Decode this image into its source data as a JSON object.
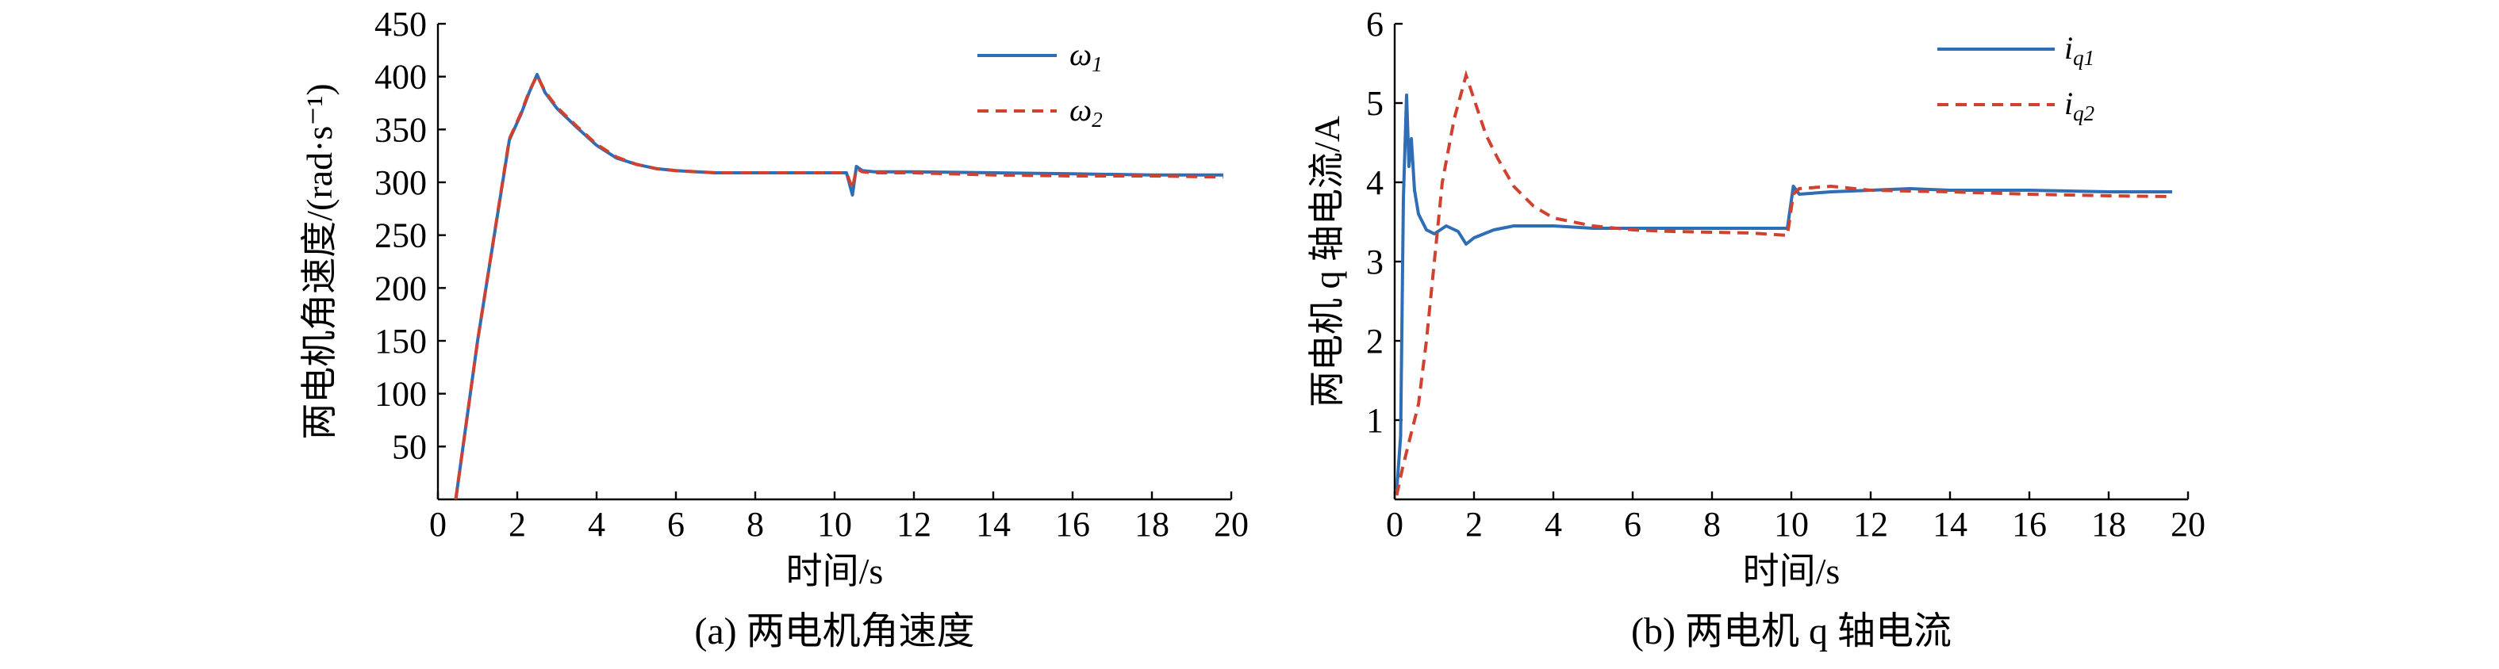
{
  "colors": {
    "series_solid": "#2f6db5",
    "series_dash": "#d0412f",
    "axis": "#000000"
  },
  "chart_data": [
    {
      "type": "line",
      "caption": "(a) 两电机角速度",
      "xlabel": "时间/s",
      "ylabel": "两电机角速度/(rad·s⁻¹)",
      "xlim": [
        0,
        20
      ],
      "ylim": [
        0,
        450
      ],
      "xticks": [
        0,
        2,
        4,
        6,
        8,
        10,
        12,
        14,
        16,
        18,
        20
      ],
      "yticks": [
        50,
        100,
        150,
        200,
        250,
        300,
        350,
        400,
        450
      ],
      "legend_position": "top-right",
      "series": [
        {
          "name": "ω1",
          "legend_base": "ω",
          "legend_sub": "1",
          "style": "solid",
          "x": [
            0.45,
            1.0,
            1.8,
            2.1,
            2.3,
            2.5,
            2.7,
            3.0,
            3.5,
            4.0,
            4.5,
            5.0,
            5.5,
            6.0,
            7.0,
            8.0,
            9.0,
            10.0,
            10.3,
            10.45,
            10.55,
            10.7,
            11.0,
            12.0,
            14.0,
            16.0,
            18.0,
            19.8
          ],
          "y": [
            0,
            150,
            340,
            365,
            385,
            402,
            385,
            370,
            352,
            335,
            323,
            317,
            313,
            311,
            309,
            309,
            309,
            309,
            309,
            288,
            315,
            311,
            310,
            310,
            309,
            308,
            307,
            307
          ]
        },
        {
          "name": "ω2",
          "legend_base": "ω",
          "legend_sub": "2",
          "style": "dashed",
          "x": [
            0.45,
            1.0,
            1.8,
            2.1,
            2.3,
            2.5,
            2.7,
            3.0,
            3.5,
            4.0,
            4.5,
            5.0,
            5.5,
            6.0,
            7.0,
            8.0,
            9.0,
            10.0,
            10.3,
            10.45,
            10.55,
            10.7,
            11.0,
            12.0,
            14.0,
            16.0,
            18.0,
            19.8
          ],
          "y": [
            0,
            150,
            341,
            366,
            386,
            401,
            386,
            371,
            353,
            336,
            324,
            317,
            313,
            311,
            309,
            309,
            309,
            309,
            309,
            294,
            313,
            310,
            309,
            309,
            307,
            306,
            306,
            305
          ]
        }
      ]
    },
    {
      "type": "line",
      "caption": "(b) 两电机 q 轴电流",
      "xlabel": "时间/s",
      "ylabel": "两电机 q 轴电流/A",
      "xlim": [
        0,
        20
      ],
      "ylim": [
        0,
        6
      ],
      "xticks": [
        0,
        2,
        4,
        6,
        8,
        10,
        12,
        14,
        16,
        18,
        20
      ],
      "yticks": [
        1,
        2,
        3,
        4,
        5,
        6
      ],
      "legend_position": "top-right",
      "series": [
        {
          "name": "iq1",
          "legend_base": "i",
          "legend_sub": "q1",
          "style": "solid",
          "x": [
            0.05,
            0.15,
            0.22,
            0.3,
            0.36,
            0.42,
            0.5,
            0.6,
            0.8,
            1.0,
            1.3,
            1.6,
            1.8,
            2.0,
            2.5,
            3.0,
            4.0,
            5.0,
            6.0,
            8.0,
            9.9,
            10.05,
            10.2,
            11.0,
            12.0,
            13.0,
            14.0,
            16.0,
            18.0,
            19.6
          ],
          "y": [
            0.1,
            0.8,
            3.8,
            5.1,
            4.2,
            4.55,
            3.9,
            3.6,
            3.4,
            3.35,
            3.45,
            3.38,
            3.22,
            3.3,
            3.4,
            3.45,
            3.45,
            3.42,
            3.42,
            3.42,
            3.42,
            3.95,
            3.85,
            3.88,
            3.9,
            3.92,
            3.9,
            3.9,
            3.88,
            3.88
          ]
        },
        {
          "name": "iq2",
          "legend_base": "i",
          "legend_sub": "q2",
          "style": "dashed",
          "x": [
            0.05,
            0.2,
            0.4,
            0.6,
            0.8,
            1.0,
            1.2,
            1.5,
            1.8,
            2.0,
            2.3,
            2.6,
            3.0,
            3.5,
            4.0,
            4.5,
            5.0,
            6.0,
            7.0,
            8.0,
            9.0,
            9.9,
            10.05,
            10.2,
            11.0,
            12.0,
            14.0,
            16.0,
            18.0,
            19.6
          ],
          "y": [
            0.05,
            0.4,
            0.8,
            1.2,
            2.0,
            3.0,
            4.0,
            4.8,
            5.35,
            5.05,
            4.6,
            4.3,
            3.95,
            3.7,
            3.55,
            3.5,
            3.45,
            3.4,
            3.38,
            3.37,
            3.36,
            3.33,
            3.85,
            3.92,
            3.95,
            3.9,
            3.88,
            3.85,
            3.83,
            3.82
          ]
        }
      ]
    }
  ]
}
